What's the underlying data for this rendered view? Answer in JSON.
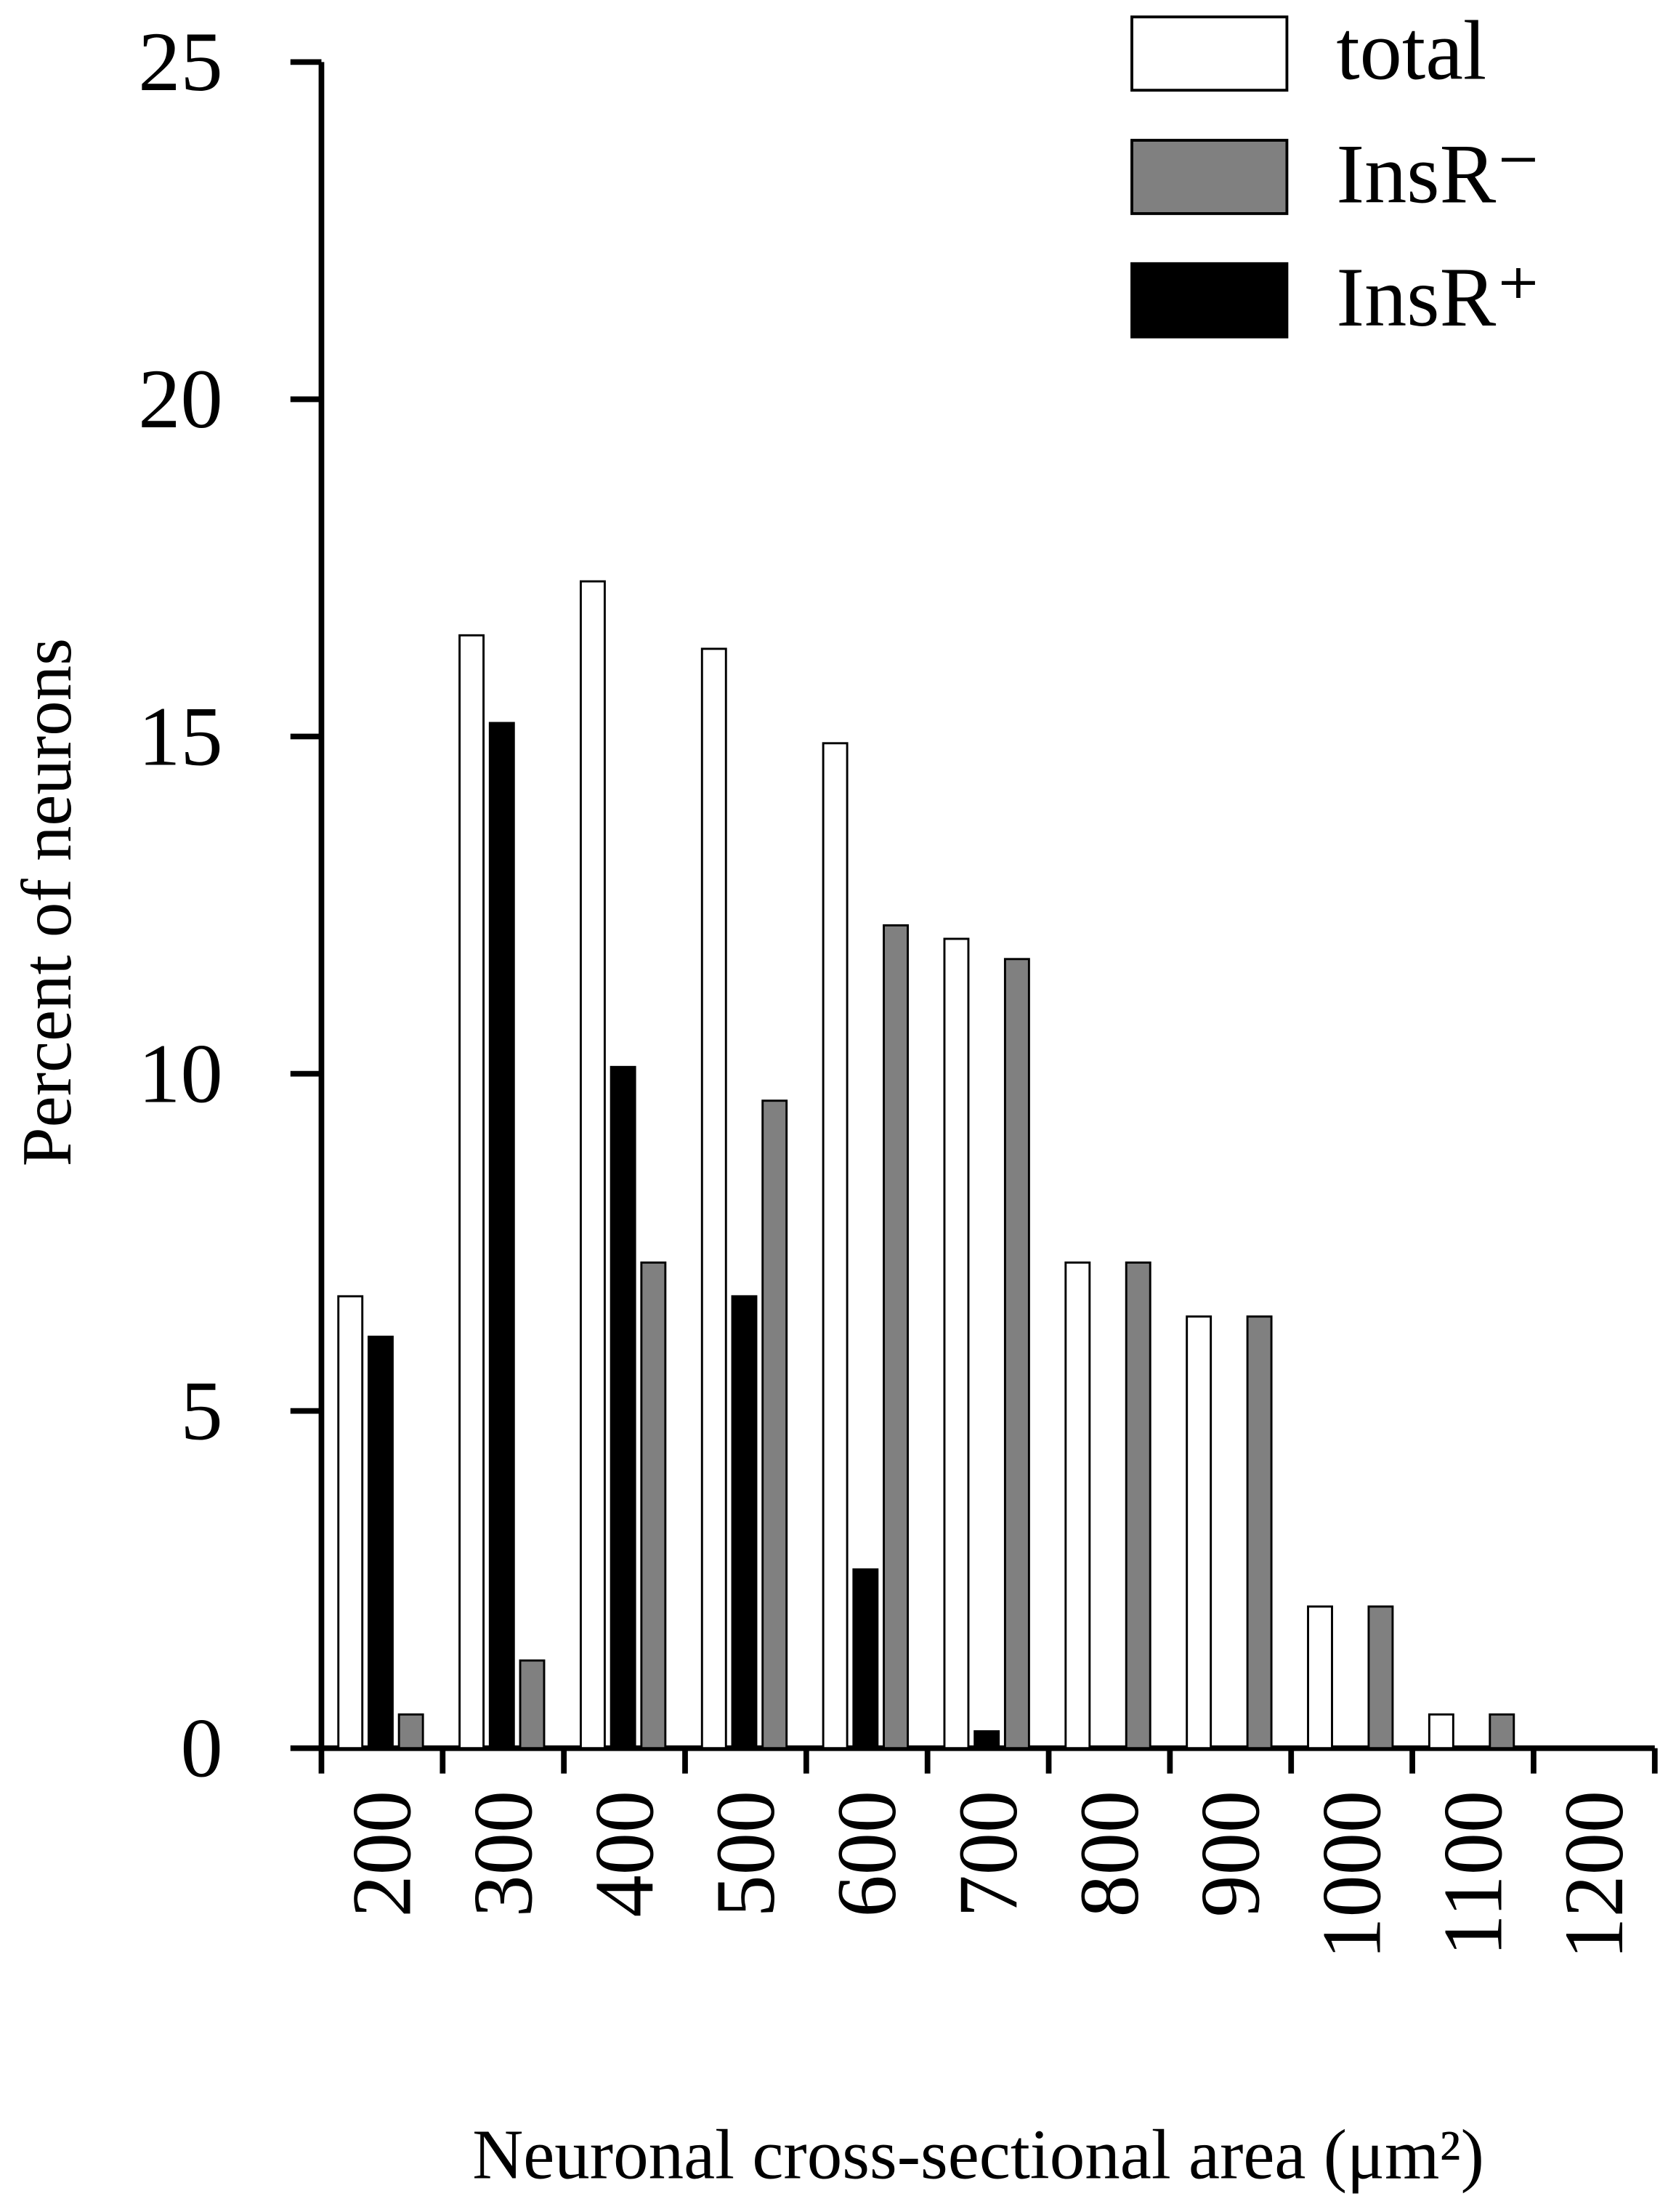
{
  "chart_data": {
    "type": "bar",
    "x_label": "Neuronal cross-sectional area (μm²)",
    "y_label": "Percent of neurons",
    "categories": [
      "200",
      "300",
      "400",
      "500",
      "600",
      "700",
      "800",
      "900",
      "1000",
      "1100",
      "1200"
    ],
    "series": [
      {
        "name": "total",
        "color": "#ffffff",
        "values": [
          6.7,
          16.5,
          17.3,
          16.3,
          14.9,
          12.0,
          7.2,
          6.4,
          2.1,
          0.5,
          0
        ]
      },
      {
        "name": "InsR⁻",
        "color": "#808080",
        "values": [
          0.5,
          1.3,
          7.2,
          9.6,
          12.2,
          11.7,
          7.2,
          6.4,
          2.1,
          0.5,
          0
        ]
      },
      {
        "name": "InsR⁺",
        "color": "#000000",
        "values": [
          6.1,
          15.2,
          10.1,
          6.7,
          2.65,
          0.25,
          0,
          0,
          0,
          0,
          0
        ]
      }
    ],
    "ylim": [
      0,
      25
    ],
    "yticks": [
      0,
      5,
      10,
      15,
      20,
      25
    ],
    "grid": false,
    "legend": "upper right"
  }
}
